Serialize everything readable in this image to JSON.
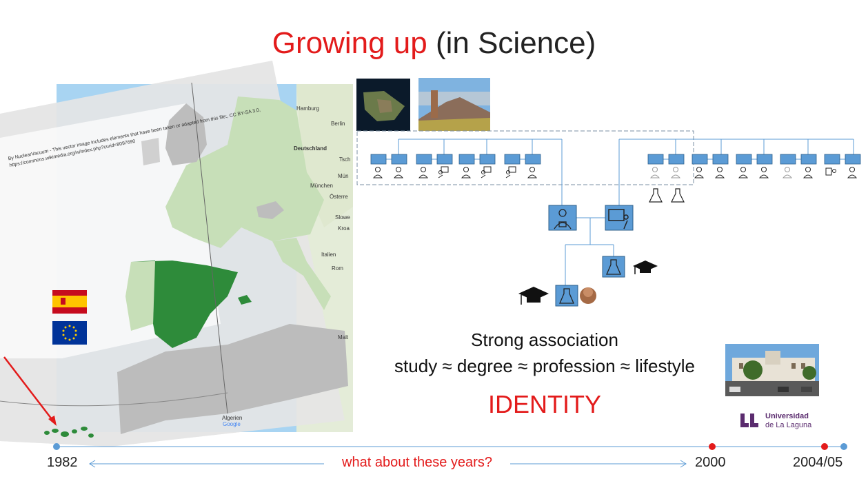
{
  "slide": {
    "title_highlight": "Growing up",
    "title_rest": " (in Science)"
  },
  "map": {
    "attribution_line1": "By NuclearVacuum - This vector image includes elements that have been taken or adapted from this file:, CC BY-SA 3.0,",
    "attribution_line2": "https://commons.wikimedia.org/w/index.php?curid=8097690",
    "place_labels": [
      "Hamburg",
      "Berlin",
      "Deutschland",
      "Tsch",
      "Mün",
      "München",
      "Österre",
      "Slowe",
      "Kroa",
      "Italien",
      "Rom",
      "Malt",
      "Algerien"
    ],
    "google_logo": "Google"
  },
  "association": {
    "line1": "Strong association",
    "line2": "study ≈ degree ≈ profession ≈ lifestyle",
    "identity": "IDENTITY"
  },
  "university": {
    "name_line1": "Universidad",
    "name_line2": "de La Laguna",
    "brand_color": "#5b2c6f"
  },
  "timeline": {
    "start": "1982",
    "middle_question": "what about these years?",
    "mark_2000": "2000",
    "end": "2004/05"
  },
  "colors": {
    "accent_red": "#e31b1b",
    "tree_box": "#5b9bd5",
    "spain_green": "#2e8b3a",
    "europe_green": "#c7dfb8"
  }
}
